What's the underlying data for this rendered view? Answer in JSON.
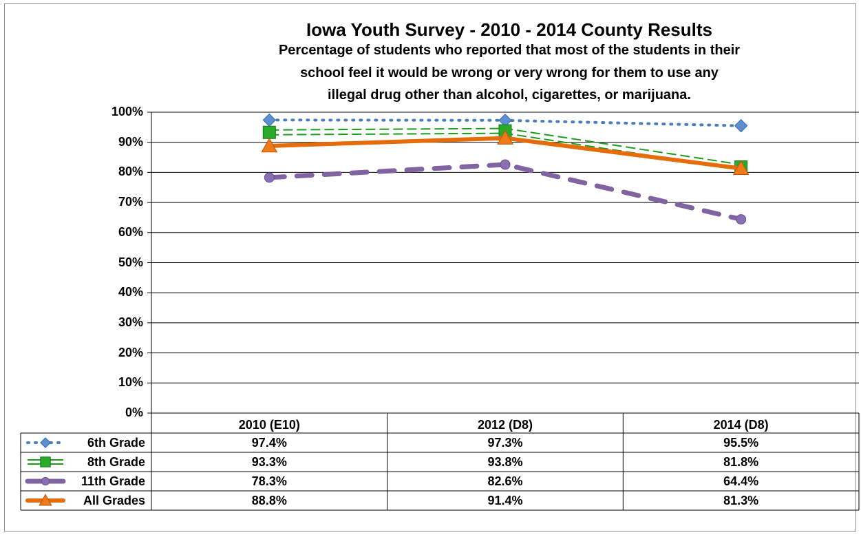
{
  "chart_data": {
    "type": "line",
    "title": "Iowa Youth Survey - 2010 - 2014 County Results",
    "subtitle_lines": [
      "Percentage of students who reported that most of the students in their",
      "school feel it would be wrong or very wrong for them to use any",
      "illegal drug other than alcohol, cigarettes, or marijuana."
    ],
    "categories": [
      "2010 (E10)",
      "2012 (D8)",
      "2014 (D8)"
    ],
    "y_ticks": [
      "0%",
      "10%",
      "20%",
      "30%",
      "40%",
      "50%",
      "60%",
      "70%",
      "80%",
      "90%",
      "100%"
    ],
    "ylim": [
      0,
      100
    ],
    "grid": true,
    "legend": "data-table",
    "series": [
      {
        "name": "6th Grade",
        "values": [
          97.4,
          97.3,
          95.5
        ],
        "labels": [
          "97.4%",
          "97.3%",
          "95.5%"
        ],
        "color": "#4a7ebb",
        "marker": "diamond",
        "line": "dotted"
      },
      {
        "name": "8th Grade",
        "values": [
          93.3,
          93.8,
          81.8
        ],
        "labels": [
          "93.3%",
          "93.8%",
          "81.8%"
        ],
        "color": "#1a9c1a",
        "marker": "square",
        "line": "double-dashed"
      },
      {
        "name": "11th Grade",
        "values": [
          78.3,
          82.6,
          64.4
        ],
        "labels": [
          "78.3%",
          "82.6%",
          "64.4%"
        ],
        "color": "#8064a2",
        "marker": "circle",
        "line": "dashed"
      },
      {
        "name": "All Grades",
        "values": [
          88.8,
          91.4,
          81.3
        ],
        "labels": [
          "88.8%",
          "91.4%",
          "81.3%"
        ],
        "color": "#e46c0a",
        "marker": "triangle",
        "line": "solid"
      }
    ]
  }
}
